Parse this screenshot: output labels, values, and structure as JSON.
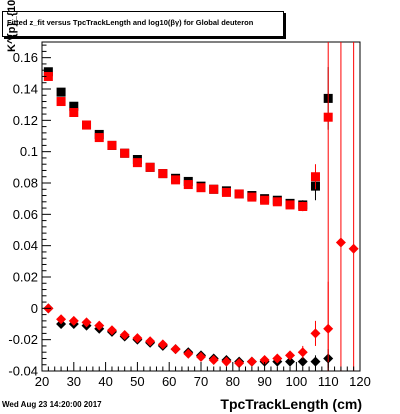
{
  "chart_data": {
    "type": "scatter",
    "title": "Fitted z_{fit} versus TpcTrackLength and log_{10}(βγ) for Global deuteron",
    "title_display": "Fitted z_fit versus TpcTrackLength and log10(βγ) for Global deuteron",
    "xlabel": "TpcTrackLength (cm)",
    "ylabel": "K^{p}_{10}",
    "xlim": [
      20,
      120
    ],
    "ylim": [
      -0.04,
      0.17
    ],
    "x_ticks": [
      "20",
      "30",
      "40",
      "50",
      "60",
      "70",
      "80",
      "90",
      "100",
      "110",
      "120"
    ],
    "y_ticks": [
      "-0.04",
      "-0.02",
      "0",
      "0.02",
      "0.04",
      "0.06",
      "0.08",
      "0.1",
      "0.12",
      "0.14",
      "0.16"
    ],
    "series": [
      {
        "marker": "square",
        "color": "#000000",
        "x": [
          22,
          26,
          30,
          34,
          38,
          42,
          46,
          50,
          54,
          58,
          62,
          66,
          70,
          74,
          78,
          82,
          86,
          90,
          94,
          98,
          102,
          106,
          110
        ],
        "y": [
          0.151,
          0.138,
          0.129,
          0.117,
          0.111,
          0.104,
          0.099,
          0.095,
          0.09,
          0.086,
          0.083,
          0.081,
          0.078,
          0.076,
          0.075,
          0.073,
          0.072,
          0.07,
          0.069,
          0.067,
          0.066,
          0.078,
          0.134
        ],
        "err": [
          0.001,
          0.001,
          0.001,
          0.001,
          0.001,
          0.001,
          0.001,
          0.001,
          0.001,
          0.001,
          0.001,
          0.001,
          0.001,
          0.001,
          0.001,
          0.001,
          0.001,
          0.001,
          0.002,
          0.002,
          0.003,
          0.009,
          0.02
        ]
      },
      {
        "marker": "square",
        "color": "#ff0000",
        "x": [
          22,
          26,
          30,
          34,
          38,
          42,
          46,
          50,
          54,
          58,
          62,
          66,
          70,
          74,
          78,
          82,
          86,
          90,
          94,
          98,
          102,
          106,
          110
        ],
        "y": [
          0.148,
          0.132,
          0.125,
          0.117,
          0.109,
          0.104,
          0.099,
          0.093,
          0.09,
          0.086,
          0.082,
          0.079,
          0.077,
          0.076,
          0.074,
          0.073,
          0.071,
          0.069,
          0.068,
          0.066,
          0.065,
          0.084,
          0.122
        ],
        "err": [
          0.001,
          0.001,
          0.001,
          0.001,
          0.001,
          0.001,
          0.001,
          0.001,
          0.001,
          0.001,
          0.001,
          0.001,
          0.001,
          0.001,
          0.001,
          0.001,
          0.001,
          0.001,
          0.002,
          0.002,
          0.003,
          0.008,
          0.2
        ]
      },
      {
        "marker": "diamond",
        "color": "#000000",
        "x": [
          22,
          26,
          30,
          34,
          38,
          42,
          46,
          50,
          54,
          58,
          62,
          66,
          70,
          74,
          78,
          82,
          86,
          90,
          94,
          98,
          102,
          106,
          110
        ],
        "y": [
          0.0,
          -0.01,
          -0.01,
          -0.011,
          -0.013,
          -0.015,
          -0.018,
          -0.02,
          -0.022,
          -0.024,
          -0.026,
          -0.028,
          -0.03,
          -0.032,
          -0.033,
          -0.034,
          -0.034,
          -0.034,
          -0.034,
          -0.034,
          -0.034,
          -0.034,
          -0.032
        ],
        "err": [
          0.001,
          0.001,
          0.001,
          0.001,
          0.001,
          0.001,
          0.001,
          0.001,
          0.001,
          0.001,
          0.001,
          0.001,
          0.001,
          0.001,
          0.001,
          0.001,
          0.001,
          0.001,
          0.001,
          0.001,
          0.002,
          0.004,
          0.006
        ]
      },
      {
        "marker": "diamond",
        "color": "#ff0000",
        "x": [
          22,
          26,
          30,
          34,
          38,
          42,
          46,
          50,
          54,
          58,
          62,
          66,
          70,
          74,
          78,
          82,
          86,
          90,
          94,
          98,
          102,
          106,
          110,
          114,
          118
        ],
        "y": [
          0.0,
          -0.007,
          -0.008,
          -0.009,
          -0.011,
          -0.014,
          -0.017,
          -0.019,
          -0.021,
          -0.023,
          -0.026,
          -0.029,
          -0.031,
          -0.033,
          -0.034,
          -0.035,
          -0.034,
          -0.033,
          -0.032,
          -0.03,
          -0.028,
          -0.016,
          -0.013,
          0.042,
          0.038
        ],
        "err": [
          0.001,
          0.001,
          0.001,
          0.001,
          0.001,
          0.001,
          0.001,
          0.001,
          0.001,
          0.001,
          0.001,
          0.001,
          0.001,
          0.001,
          0.001,
          0.001,
          0.001,
          0.002,
          0.002,
          0.002,
          0.004,
          0.008,
          0.03,
          0.2,
          0.2
        ]
      }
    ]
  },
  "footer": {
    "datestamp": "Wed Aug 23 14:20:00 2017"
  }
}
